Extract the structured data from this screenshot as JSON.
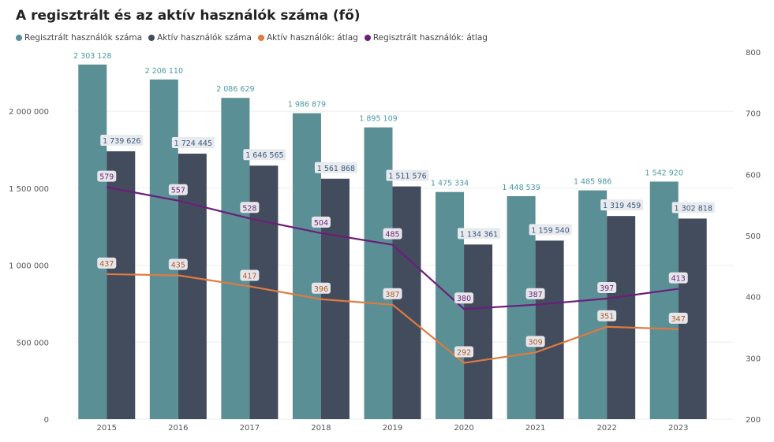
{
  "title": "A regisztrált és az aktív használók száma (fő)",
  "legend": [
    {
      "label": "Regisztrált használók száma",
      "color": "#5b8f96"
    },
    {
      "label": "Aktív használók száma",
      "color": "#424c5d"
    },
    {
      "label": "Aktív használók: átlag",
      "color": "#e07a3f"
    },
    {
      "label": "Regisztrált használók: átlag",
      "color": "#6b1f7a"
    }
  ],
  "chart_data": {
    "type": "bar",
    "title": "A regisztrált és az aktív használók száma (fő)",
    "categories": [
      "2015",
      "2016",
      "2017",
      "2018",
      "2019",
      "2020",
      "2021",
      "2022",
      "2023"
    ],
    "series": [
      {
        "name": "Regisztrált használók száma",
        "type": "bar",
        "axis": "left",
        "color": "#5b8f96",
        "values": [
          2303128,
          2206110,
          2086629,
          1986879,
          1895109,
          1475334,
          1448539,
          1485986,
          1542920
        ],
        "labels": [
          "2 303 128",
          "2 206 110",
          "2 086 629",
          "1 986 879",
          "1 895 109",
          "1 475 334",
          "1 448 539",
          "1 485 986",
          "1 542 920"
        ]
      },
      {
        "name": "Aktív használók száma",
        "type": "bar",
        "axis": "left",
        "color": "#424c5d",
        "values": [
          1739626,
          1724445,
          1646565,
          1561868,
          1511576,
          1134361,
          1159540,
          1319459,
          1302818
        ],
        "labels": [
          "1 739 626",
          "1 724 445",
          "1 646 565",
          "1 561 868",
          "1 511 576",
          "1 134 361",
          "1 159 540",
          "1 319 459",
          "1 302 818"
        ]
      },
      {
        "name": "Aktív használók: átlag",
        "type": "line",
        "axis": "right",
        "color": "#e07a3f",
        "values": [
          437,
          435,
          417,
          396,
          387,
          292,
          309,
          351,
          347
        ]
      },
      {
        "name": "Regisztrált használók: átlag",
        "type": "line",
        "axis": "right",
        "color": "#6b1f7a",
        "values": [
          579,
          557,
          528,
          504,
          485,
          380,
          387,
          397,
          413
        ]
      }
    ],
    "y_left": {
      "ylim": [
        0,
        2400000
      ],
      "ticks": [
        0,
        500000,
        1000000,
        1500000,
        2000000
      ],
      "tick_labels": [
        "0",
        "500 000",
        "1 000 000",
        "1 500 000",
        "2 000 000"
      ]
    },
    "y_right": {
      "ylim": [
        200,
        800
      ],
      "ticks": [
        200,
        300,
        400,
        500,
        600,
        700,
        800
      ],
      "tick_labels": [
        "200",
        "300",
        "400",
        "500",
        "600",
        "700",
        "800"
      ]
    },
    "grid": true,
    "legend_position": "top-left"
  }
}
